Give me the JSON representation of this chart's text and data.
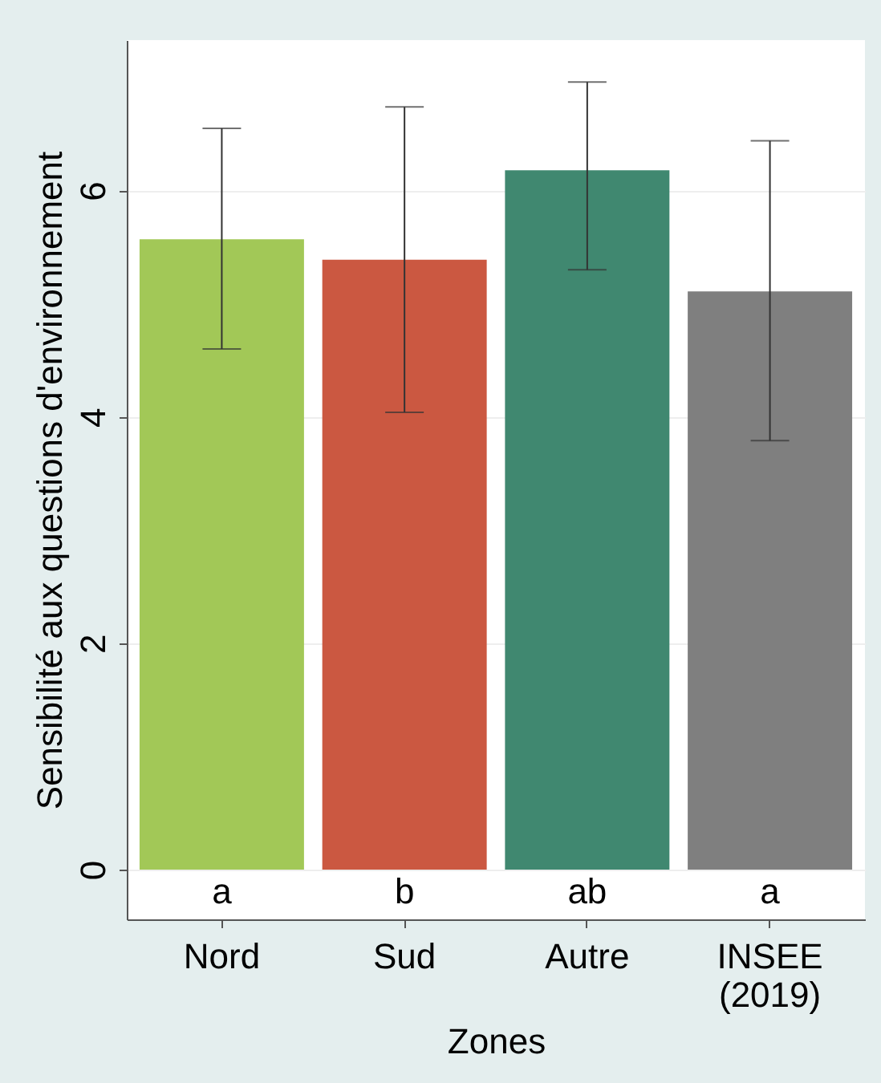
{
  "chart_data": {
    "type": "bar",
    "xlabel": "Zones",
    "ylabel": "Sensibilité aux questions d'environnement",
    "categories": [
      "Nord",
      "Sud",
      "Autre",
      "INSEE (2019)"
    ],
    "values": [
      5.57,
      5.39,
      6.18,
      5.11
    ],
    "colors": [
      "#a2c857",
      "#cb5841",
      "#408870",
      "#7f7f7f"
    ],
    "errors": [
      [
        4.6,
        6.55
      ],
      [
        4.04,
        6.74
      ],
      [
        5.3,
        6.96
      ],
      [
        3.79,
        6.44
      ]
    ],
    "ylim": [
      -0.44,
      7.33
    ],
    "yticks": [
      0,
      2,
      4,
      6
    ],
    "grid": "y",
    "annotations": [
      "a",
      "b",
      "ab",
      "a"
    ]
  }
}
